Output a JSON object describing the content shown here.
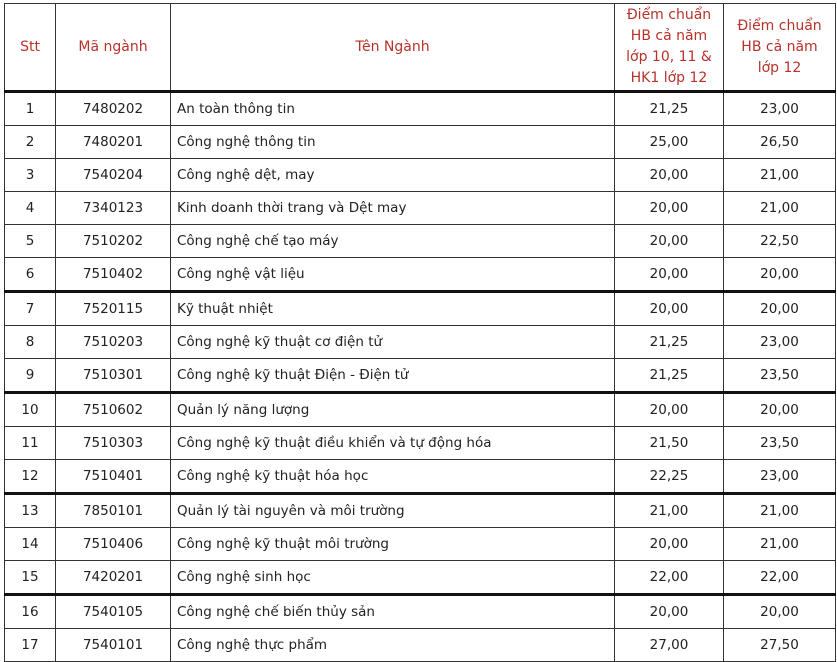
{
  "header": {
    "stt": "Stt",
    "code": "Mã ngành",
    "name": "Tên Ngành",
    "score1": "Điểm chuẩn HB cả năm lớp 10, 11 & HK1 lớp 12",
    "score2": "Điểm chuẩn HB cả năm lớp 12"
  },
  "rows": [
    {
      "stt": "1",
      "code": "7480202",
      "name": "An toàn thông tin",
      "s1": "21,25",
      "s2": "23,00"
    },
    {
      "stt": "2",
      "code": "7480201",
      "name": "Công nghệ thông tin",
      "s1": "25,00",
      "s2": "26,50"
    },
    {
      "stt": "3",
      "code": "7540204",
      "name": "Công nghệ dệt, may",
      "s1": "20,00",
      "s2": "21,00"
    },
    {
      "stt": "4",
      "code": "7340123",
      "name": "Kinh doanh thời trang và Dệt may",
      "s1": "20,00",
      "s2": "21,00"
    },
    {
      "stt": "5",
      "code": "7510202",
      "name": "Công nghệ chế tạo máy",
      "s1": "20,00",
      "s2": "22,50"
    },
    {
      "stt": "6",
      "code": "7510402",
      "name": "Công nghệ vật liệu",
      "s1": "20,00",
      "s2": "20,00"
    },
    {
      "stt": "7",
      "code": "7520115",
      "name": "Kỹ thuật nhiệt",
      "s1": "20,00",
      "s2": "20,00"
    },
    {
      "stt": "8",
      "code": "7510203",
      "name": "Công nghệ kỹ thuật cơ điện tử",
      "s1": "21,25",
      "s2": "23,00"
    },
    {
      "stt": "9",
      "code": "7510301",
      "name": "Công nghệ kỹ thuật Điện - Điện tử",
      "s1": "21,25",
      "s2": "23,50"
    },
    {
      "stt": "10",
      "code": "7510602",
      "name": "Quản lý năng lượng",
      "s1": "20,00",
      "s2": "20,00"
    },
    {
      "stt": "11",
      "code": "7510303",
      "name": "Công nghệ kỹ thuật điều khiển và tự động hóa",
      "s1": "21,50",
      "s2": "23,50"
    },
    {
      "stt": "12",
      "code": "7510401",
      "name": "Công nghệ kỹ thuật hóa học",
      "s1": "22,25",
      "s2": "23,00"
    },
    {
      "stt": "13",
      "code": "7850101",
      "name": "Quản lý tài nguyên và môi trường",
      "s1": "21,00",
      "s2": "21,00"
    },
    {
      "stt": "14",
      "code": "7510406",
      "name": "Công nghệ kỹ thuật môi trường",
      "s1": "20,00",
      "s2": "21,00"
    },
    {
      "stt": "15",
      "code": "7420201",
      "name": "Công nghệ sinh học",
      "s1": "22,00",
      "s2": "22,00"
    },
    {
      "stt": "16",
      "code": "7540105",
      "name": "Công nghệ chế biến thủy sản",
      "s1": "20,00",
      "s2": "20,00"
    },
    {
      "stt": "17",
      "code": "7540101",
      "name": "Công nghệ thực phẩm",
      "s1": "27,00",
      "s2": "27,50"
    }
  ],
  "colors": {
    "header_text": "#b8322a",
    "border": "#333333"
  }
}
